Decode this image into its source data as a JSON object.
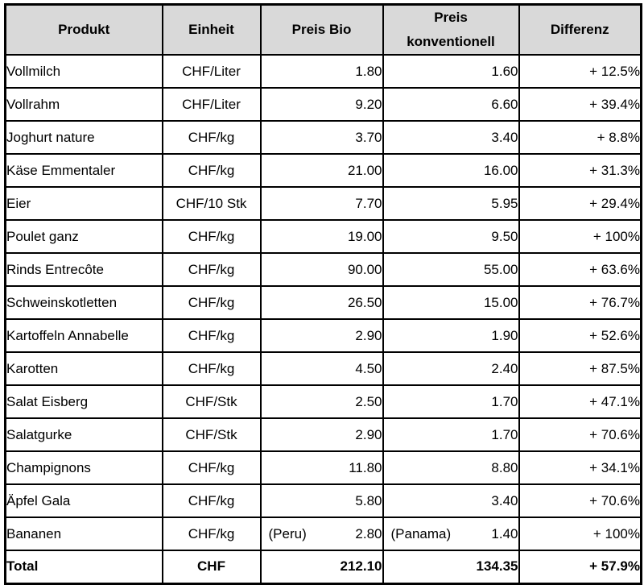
{
  "table": {
    "colors": {
      "header_bg": "#d9d9d9",
      "border": "#000000",
      "text": "#000000",
      "row_bg": "#ffffff"
    },
    "columns": [
      {
        "label": "Produkt"
      },
      {
        "label": "Einheit"
      },
      {
        "label": "Preis Bio"
      },
      {
        "label_line1": "Preis",
        "label_line2": "konventionell"
      },
      {
        "label": "Differenz"
      }
    ],
    "rows": [
      {
        "produkt": "Vollmilch",
        "einheit": "CHF/Liter",
        "bio": "1.80",
        "konv": "1.60",
        "diff": "+ 12.5%"
      },
      {
        "produkt": "Vollrahm",
        "einheit": "CHF/Liter",
        "bio": "9.20",
        "konv": "6.60",
        "diff": "+ 39.4%"
      },
      {
        "produkt": "Joghurt nature",
        "einheit": "CHF/kg",
        "bio": "3.70",
        "konv": "3.40",
        "diff": "+ 8.8%"
      },
      {
        "produkt": "Käse Emmentaler",
        "einheit": "CHF/kg",
        "bio": "21.00",
        "konv": "16.00",
        "diff": "+ 31.3%"
      },
      {
        "produkt": "Eier",
        "einheit": "CHF/10 Stk",
        "bio": "7.70",
        "konv": "5.95",
        "diff": "+ 29.4%"
      },
      {
        "produkt": "Poulet ganz",
        "einheit": "CHF/kg",
        "bio": "19.00",
        "konv": "9.50",
        "diff": "+ 100%"
      },
      {
        "produkt": "Rinds Entrecôte",
        "einheit": "CHF/kg",
        "bio": "90.00",
        "konv": "55.00",
        "diff": "+ 63.6%"
      },
      {
        "produkt": "Schweinskotletten",
        "einheit": "CHF/kg",
        "bio": "26.50",
        "konv": "15.00",
        "diff": "+ 76.7%"
      },
      {
        "produkt": "Kartoffeln Annabelle",
        "einheit": "CHF/kg",
        "bio": "2.90",
        "konv": "1.90",
        "diff": "+ 52.6%"
      },
      {
        "produkt": "Karotten",
        "einheit": "CHF/kg",
        "bio": "4.50",
        "konv": "2.40",
        "diff": "+ 87.5%"
      },
      {
        "produkt": "Salat Eisberg",
        "einheit": "CHF/Stk",
        "bio": "2.50",
        "konv": "1.70",
        "diff": "+ 47.1%"
      },
      {
        "produkt": "Salatgurke",
        "einheit": "CHF/Stk",
        "bio": "2.90",
        "konv": "1.70",
        "diff": "+ 70.6%"
      },
      {
        "produkt": "Champignons",
        "einheit": "CHF/kg",
        "bio": "11.80",
        "konv": "8.80",
        "diff": "+ 34.1%"
      },
      {
        "produkt": "Äpfel Gala",
        "einheit": "CHF/kg",
        "bio": "5.80",
        "konv": "3.40",
        "diff": "+ 70.6%"
      },
      {
        "produkt": "Bananen",
        "einheit": "CHF/kg",
        "bio_note": "(Peru)",
        "bio": "2.80",
        "konv_note": "(Panama)",
        "konv": "1.40",
        "diff": "+ 100%"
      }
    ],
    "total_row": {
      "produkt": "Total",
      "einheit": "CHF",
      "bio": "212.10",
      "konv": "134.35",
      "diff": "+ 57.9%"
    }
  }
}
